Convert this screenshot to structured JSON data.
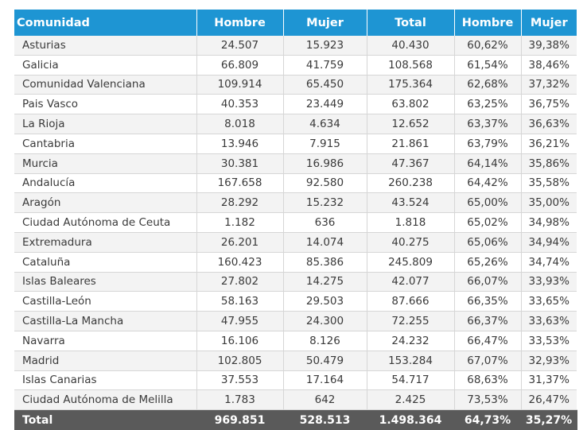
{
  "table": {
    "headers": [
      "Comunidad",
      "Hombre",
      "Mujer",
      "Total",
      "Hombre",
      "Mujer"
    ],
    "rows": [
      [
        "Asturias",
        "24.507",
        "15.923",
        "40.430",
        "60,62%",
        "39,38%"
      ],
      [
        "Galicia",
        "66.809",
        "41.759",
        "108.568",
        "61,54%",
        "38,46%"
      ],
      [
        "Comunidad Valenciana",
        "109.914",
        "65.450",
        "175.364",
        "62,68%",
        "37,32%"
      ],
      [
        "Pais Vasco",
        "40.353",
        "23.449",
        "63.802",
        "63,25%",
        "36,75%"
      ],
      [
        "La Rioja",
        "8.018",
        "4.634",
        "12.652",
        "63,37%",
        "36,63%"
      ],
      [
        "Cantabria",
        "13.946",
        "7.915",
        "21.861",
        "63,79%",
        "36,21%"
      ],
      [
        "Murcia",
        "30.381",
        "16.986",
        "47.367",
        "64,14%",
        "35,86%"
      ],
      [
        "Andalucía",
        "167.658",
        "92.580",
        "260.238",
        "64,42%",
        "35,58%"
      ],
      [
        "Aragón",
        "28.292",
        "15.232",
        "43.524",
        "65,00%",
        "35,00%"
      ],
      [
        "Ciudad Autónoma de Ceuta",
        "1.182",
        "636",
        "1.818",
        "65,02%",
        "34,98%"
      ],
      [
        "Extremadura",
        "26.201",
        "14.074",
        "40.275",
        "65,06%",
        "34,94%"
      ],
      [
        "Cataluña",
        "160.423",
        "85.386",
        "245.809",
        "65,26%",
        "34,74%"
      ],
      [
        "Islas Baleares",
        "27.802",
        "14.275",
        "42.077",
        "66,07%",
        "33,93%"
      ],
      [
        "Castilla-León",
        "58.163",
        "29.503",
        "87.666",
        "66,35%",
        "33,65%"
      ],
      [
        "Castilla-La Mancha",
        "47.955",
        "24.300",
        "72.255",
        "66,37%",
        "33,63%"
      ],
      [
        "Navarra",
        "16.106",
        "8.126",
        "24.232",
        "66,47%",
        "33,53%"
      ],
      [
        "Madrid",
        "102.805",
        "50.479",
        "153.284",
        "67,07%",
        "32,93%"
      ],
      [
        "Islas Canarias",
        "37.553",
        "17.164",
        "54.717",
        "68,63%",
        "31,37%"
      ],
      [
        "Ciudad Autónoma de Melilla",
        "1.783",
        "642",
        "2.425",
        "73,53%",
        "26,47%"
      ]
    ],
    "total": [
      "Total",
      "969.851",
      "528.513",
      "1.498.364",
      "64,73%",
      "35,27%"
    ]
  },
  "colors": {
    "header": "#1e95d3",
    "total_row": "#5a5a5a",
    "stripe": "#f3f3f3"
  }
}
